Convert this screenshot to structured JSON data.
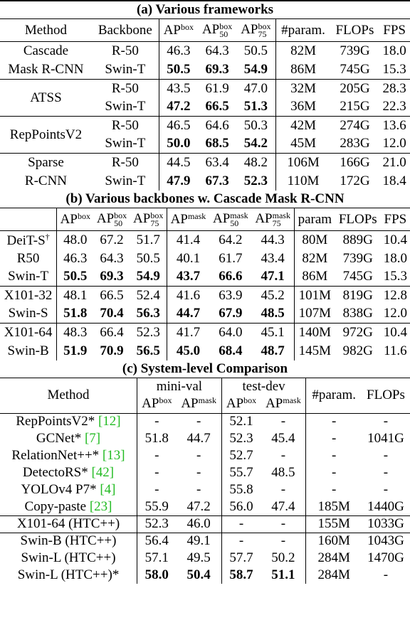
{
  "table_a": {
    "title": "(a) Various frameworks",
    "headers": [
      "Method",
      "Backbone",
      {
        "base": "AP",
        "sup": "box"
      },
      {
        "base": "AP",
        "sup": "box",
        "sub": "50"
      },
      {
        "base": "AP",
        "sup": "box",
        "sub": "75"
      },
      "#param.",
      "FLOPs",
      "FPS"
    ],
    "groups": [
      {
        "method": [
          "Cascade",
          "Mask R-CNN"
        ],
        "rows": [
          {
            "backbone": "R-50",
            "cells": [
              "46.3",
              "64.3",
              "50.5",
              "82M",
              "739G",
              "18.0"
            ],
            "bold": false
          },
          {
            "backbone": "Swin-T",
            "cells": [
              "50.5",
              "69.3",
              "54.9",
              "86M",
              "745G",
              "15.3"
            ],
            "bold": true
          }
        ]
      },
      {
        "method": [
          "ATSS"
        ],
        "rows": [
          {
            "backbone": "R-50",
            "cells": [
              "43.5",
              "61.9",
              "47.0",
              "32M",
              "205G",
              "28.3"
            ],
            "bold": false
          },
          {
            "backbone": "Swin-T",
            "cells": [
              "47.2",
              "66.5",
              "51.3",
              "36M",
              "215G",
              "22.3"
            ],
            "bold": true
          }
        ]
      },
      {
        "method": [
          "RepPointsV2"
        ],
        "rows": [
          {
            "backbone": "R-50",
            "cells": [
              "46.5",
              "64.6",
              "50.3",
              "42M",
              "274G",
              "13.6"
            ],
            "bold": false
          },
          {
            "backbone": "Swin-T",
            "cells": [
              "50.0",
              "68.5",
              "54.2",
              "45M",
              "283G",
              "12.0"
            ],
            "bold": true
          }
        ]
      },
      {
        "method": [
          "Sparse",
          "R-CNN"
        ],
        "rows": [
          {
            "backbone": "R-50",
            "cells": [
              "44.5",
              "63.4",
              "48.2",
              "106M",
              "166G",
              "21.0"
            ],
            "bold": false
          },
          {
            "backbone": "Swin-T",
            "cells": [
              "47.9",
              "67.3",
              "52.3",
              "110M",
              "172G",
              "18.4"
            ],
            "bold": true
          }
        ]
      }
    ]
  },
  "table_b": {
    "title": "(b) Various backbones w. Cascade Mask R-CNN",
    "headers": [
      {
        "base": "AP",
        "sup": "box"
      },
      {
        "base": "AP",
        "sup": "box",
        "sub": "50"
      },
      {
        "base": "AP",
        "sup": "box",
        "sub": "75"
      },
      {
        "base": "AP",
        "sup": "mask"
      },
      {
        "base": "AP",
        "sup": "mask",
        "sub": "50"
      },
      {
        "base": "AP",
        "sup": "mask",
        "sub": "75"
      },
      "param",
      "FLOPs",
      "FPS"
    ],
    "groups": [
      {
        "rows": [
          {
            "label": "DeiT-S",
            "label_sup": "†",
            "cells": [
              "48.0",
              "67.2",
              "51.7",
              "41.4",
              "64.2",
              "44.3",
              "80M",
              "889G",
              "10.4"
            ],
            "bold": false
          },
          {
            "label": "R50",
            "cells": [
              "46.3",
              "64.3",
              "50.5",
              "40.1",
              "61.7",
              "43.4",
              "82M",
              "739G",
              "18.0"
            ],
            "bold": false
          },
          {
            "label": "Swin-T",
            "cells": [
              "50.5",
              "69.3",
              "54.9",
              "43.7",
              "66.6",
              "47.1",
              "86M",
              "745G",
              "15.3"
            ],
            "bold": true
          }
        ]
      },
      {
        "rows": [
          {
            "label": "X101-32",
            "cells": [
              "48.1",
              "66.5",
              "52.4",
              "41.6",
              "63.9",
              "45.2",
              "101M",
              "819G",
              "12.8"
            ],
            "bold": false
          },
          {
            "label": "Swin-S",
            "cells": [
              "51.8",
              "70.4",
              "56.3",
              "44.7",
              "67.9",
              "48.5",
              "107M",
              "838G",
              "12.0"
            ],
            "bold": true
          }
        ]
      },
      {
        "rows": [
          {
            "label": "X101-64",
            "cells": [
              "48.3",
              "66.4",
              "52.3",
              "41.7",
              "64.0",
              "45.1",
              "140M",
              "972G",
              "10.4"
            ],
            "bold": false
          },
          {
            "label": "Swin-B",
            "cells": [
              "51.9",
              "70.9",
              "56.5",
              "45.0",
              "68.4",
              "48.7",
              "145M",
              "982G",
              "11.6"
            ],
            "bold": true
          }
        ]
      }
    ]
  },
  "table_c": {
    "title": "(c) System-level Comparison",
    "header": {
      "method": "Method",
      "groups": [
        {
          "name": "mini-val",
          "columns": [
            {
              "base": "AP",
              "sup": "box"
            },
            {
              "base": "AP",
              "sup": "mask"
            }
          ]
        },
        {
          "name": "test-dev",
          "columns": [
            {
              "base": "AP",
              "sup": "box"
            },
            {
              "base": "AP",
              "sup": "mask"
            }
          ]
        }
      ],
      "extra": [
        "#param.",
        "FLOPs"
      ]
    },
    "groups": [
      {
        "rows": [
          {
            "method": {
              "text": "RepPointsV2*",
              "ref": "[12]"
            },
            "cells": [
              "-",
              "-",
              "52.1",
              "-",
              "-",
              "-"
            ],
            "bold": false
          },
          {
            "method": {
              "text": "GCNet*",
              "ref": "[7]"
            },
            "cells": [
              "51.8",
              "44.7",
              "52.3",
              "45.4",
              "-",
              "1041G"
            ],
            "bold": false
          },
          {
            "method": {
              "text": "RelationNet++*",
              "ref": "[13]"
            },
            "cells": [
              "-",
              "-",
              "52.7",
              "-",
              "-",
              "-"
            ],
            "bold": false
          },
          {
            "method": {
              "text": "DetectoRS*",
              "ref": "[42]"
            },
            "cells": [
              "-",
              "-",
              "55.7",
              "48.5",
              "-",
              "-"
            ],
            "bold": false
          },
          {
            "method": {
              "text": "YOLOv4 P7*",
              "ref": "[4]"
            },
            "cells": [
              "-",
              "-",
              "55.8",
              "-",
              "-",
              "-"
            ],
            "bold": false
          },
          {
            "method": {
              "text": "Copy-paste",
              "ref": "[23]"
            },
            "cells": [
              "55.9",
              "47.2",
              "56.0",
              "47.4",
              "185M",
              "1440G"
            ],
            "bold": false
          }
        ]
      },
      {
        "rows": [
          {
            "method": {
              "text": "X101-64 (HTC++)"
            },
            "cells": [
              "52.3",
              "46.0",
              "-",
              "-",
              "155M",
              "1033G"
            ],
            "bold": false
          }
        ]
      },
      {
        "rows": [
          {
            "method": {
              "text": "Swin-B (HTC++)"
            },
            "cells": [
              "56.4",
              "49.1",
              "-",
              "-",
              "160M",
              "1043G"
            ],
            "bold": false
          },
          {
            "method": {
              "text": "Swin-L (HTC++)"
            },
            "cells": [
              "57.1",
              "49.5",
              "57.7",
              "50.2",
              "284M",
              "1470G"
            ],
            "bold": false
          },
          {
            "method": {
              "text": "Swin-L (HTC++)*"
            },
            "cells": [
              "58.0",
              "50.4",
              "58.7",
              "51.1",
              "284M",
              "-"
            ],
            "bold": true
          }
        ]
      }
    ]
  }
}
